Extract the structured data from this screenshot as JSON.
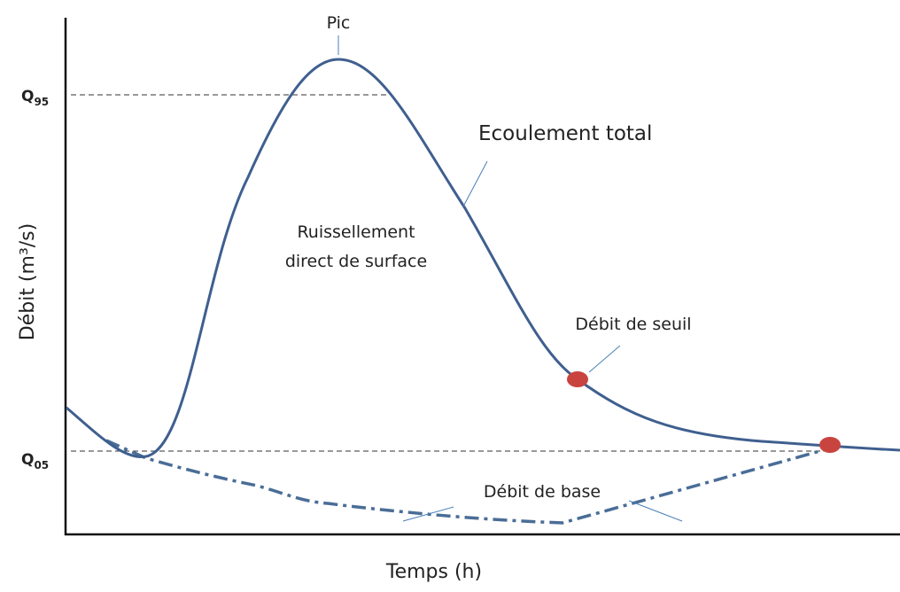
{
  "title": "Pic",
  "q95": {
    "letter": "Q",
    "subscript": "95"
  },
  "q05": {
    "letter": "Q",
    "subscript": "05"
  },
  "total_flow_label": "Ecoulement total",
  "runoff_label": [
    "Ruissellement",
    "direct de surface"
  ],
  "threshold_label": "Débit de seuil",
  "base_flow_label": "Débit de base",
  "y_axis_label": "Débit (m³/s)",
  "x_axis_label": "Temps (h)"
}
